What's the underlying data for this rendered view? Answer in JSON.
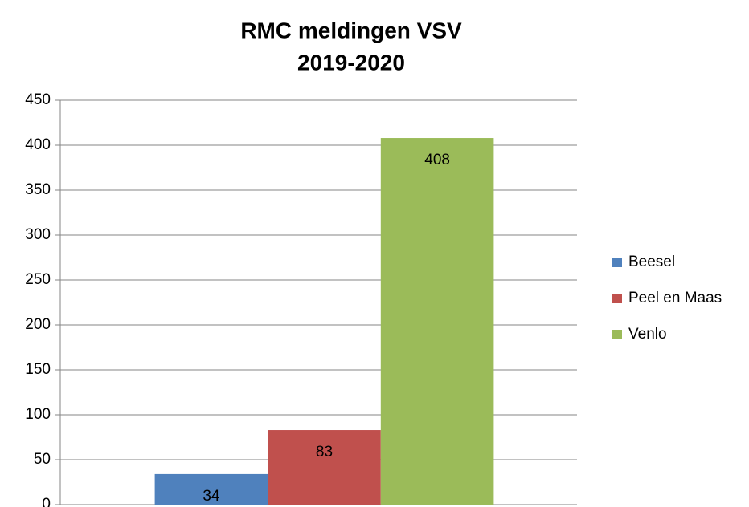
{
  "chart_data": {
    "type": "bar",
    "title": [
      "RMC meldingen VSV",
      "2019-2020"
    ],
    "categories": [
      null
    ],
    "series": [
      {
        "name": "Beesel",
        "color": "#4f81bd",
        "values": [
          34
        ]
      },
      {
        "name": "Peel en Maas",
        "color": "#c0504d",
        "values": [
          83
        ]
      },
      {
        "name": "Venlo",
        "color": "#9bbb59",
        "values": [
          408
        ]
      }
    ],
    "ylim": [
      0,
      450
    ],
    "yticks": [
      0,
      50,
      100,
      150,
      200,
      250,
      300,
      350,
      400,
      450
    ],
    "grid": true,
    "legend": "right"
  }
}
